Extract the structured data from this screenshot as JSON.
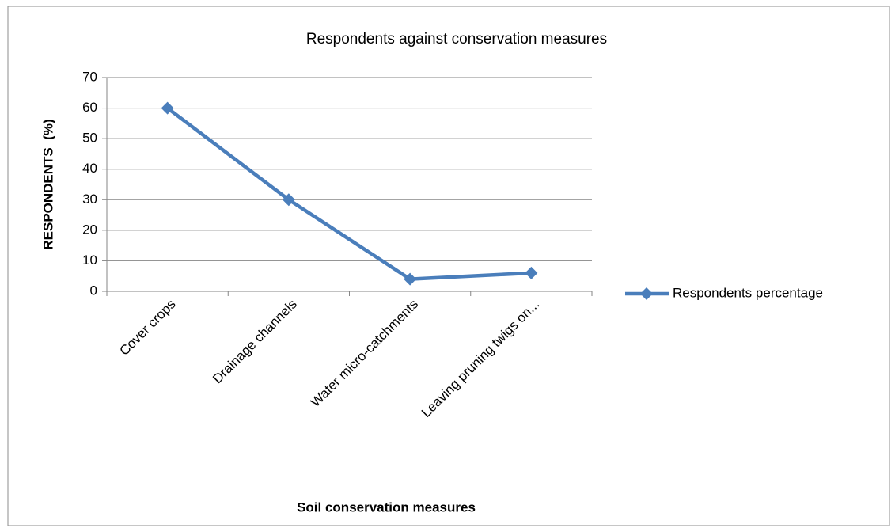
{
  "chart_data": {
    "type": "line",
    "title": "Respondents against conservation measures",
    "xlabel": "Soil conservation measures",
    "ylabel": "RESPONDENTS  (%)",
    "categories": [
      "Cover crops",
      "Drainage channels",
      "Water micro-catchments",
      "Leaving pruning twigs on..."
    ],
    "series": [
      {
        "name": "Respondents percentage",
        "color": "#4a7ebb",
        "values": [
          60,
          30,
          4,
          6
        ]
      }
    ],
    "ylim": [
      0,
      70
    ],
    "yticks": [
      0,
      10,
      20,
      30,
      40,
      50,
      60,
      70
    ],
    "grid": true,
    "legend": "right"
  }
}
